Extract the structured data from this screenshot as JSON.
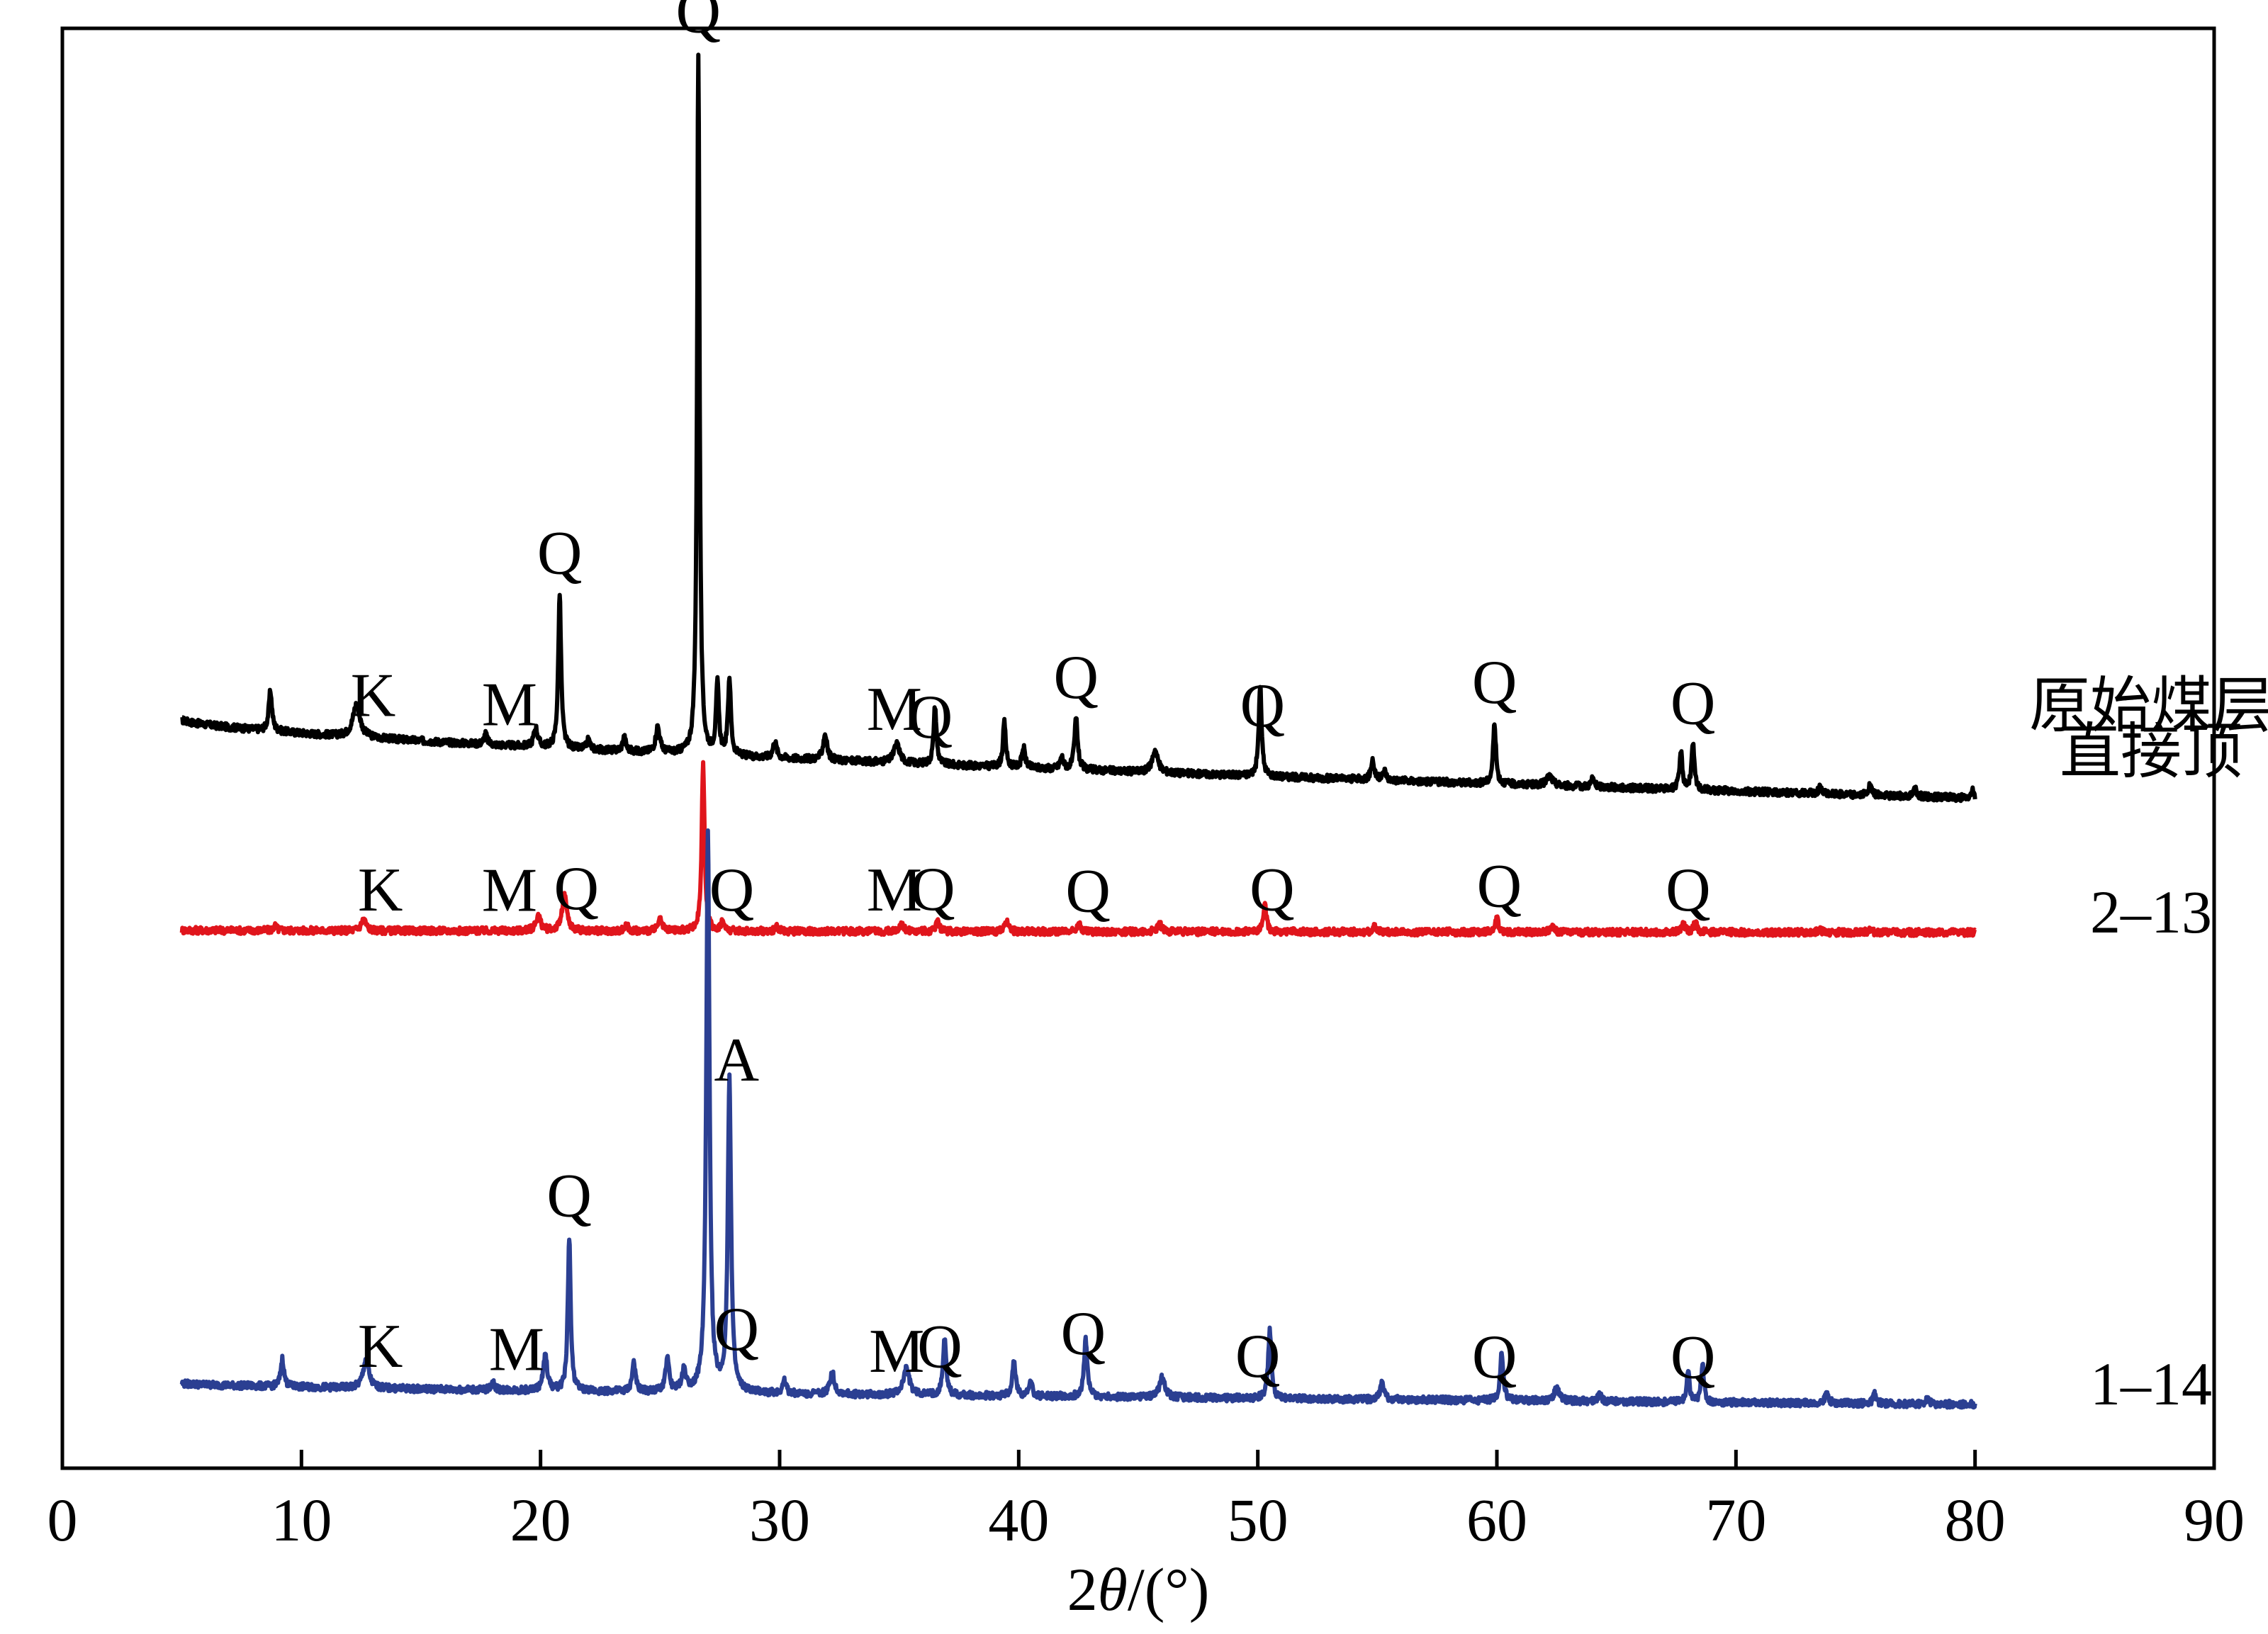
{
  "chart_data": {
    "type": "line",
    "title": "",
    "xlabel": "2θ/(°)",
    "xlabel_parts": {
      "prefix": "2",
      "theta": "θ",
      "suffix": "/(°)"
    },
    "ylabel": "",
    "xlim": [
      0,
      90
    ],
    "x_ticks": [
      0,
      10,
      20,
      30,
      40,
      50,
      60,
      70,
      80,
      90
    ],
    "x_tick_labels": [
      "0",
      "10",
      "20",
      "30",
      "40",
      "50",
      "60",
      "70",
      "80",
      "90"
    ],
    "y_axis_ticks": false,
    "grid": false,
    "legend": "none",
    "series": [
      {
        "name": "原始煤层直接顶",
        "label_lines": [
          "原始煤层",
          "直接顶"
        ],
        "color": "#000000",
        "x_range": [
          5,
          80
        ],
        "baseline": {
          "start": 0.68,
          "end": 0.01
        },
        "peaks": [
          {
            "x": 8.7,
            "h": 0.34,
            "w": 0.08
          },
          {
            "x": 12.3,
            "h": 0.28,
            "w": 0.18
          },
          {
            "x": 17.7,
            "h": 0.09,
            "w": 0.08
          },
          {
            "x": 19.8,
            "h": 0.16,
            "w": 0.1
          },
          {
            "x": 20.8,
            "h": 1.32,
            "w": 0.07
          },
          {
            "x": 22.0,
            "h": 0.08,
            "w": 0.08
          },
          {
            "x": 23.5,
            "h": 0.12,
            "w": 0.08
          },
          {
            "x": 24.9,
            "h": 0.22,
            "w": 0.1
          },
          {
            "x": 26.6,
            "h": 6.0,
            "w": 0.06
          },
          {
            "x": 27.4,
            "h": 0.6,
            "w": 0.07
          },
          {
            "x": 27.9,
            "h": 0.66,
            "w": 0.07
          },
          {
            "x": 29.8,
            "h": 0.14,
            "w": 0.09
          },
          {
            "x": 31.9,
            "h": 0.22,
            "w": 0.1
          },
          {
            "x": 34.9,
            "h": 0.16,
            "w": 0.15
          },
          {
            "x": 36.5,
            "h": 0.5,
            "w": 0.07
          },
          {
            "x": 39.4,
            "h": 0.38,
            "w": 0.07
          },
          {
            "x": 40.2,
            "h": 0.17,
            "w": 0.08
          },
          {
            "x": 41.8,
            "h": 0.1,
            "w": 0.08
          },
          {
            "x": 42.4,
            "h": 0.44,
            "w": 0.08
          },
          {
            "x": 45.7,
            "h": 0.19,
            "w": 0.14
          },
          {
            "x": 50.1,
            "h": 0.78,
            "w": 0.07
          },
          {
            "x": 54.8,
            "h": 0.17,
            "w": 0.08
          },
          {
            "x": 55.3,
            "h": 0.08,
            "w": 0.08
          },
          {
            "x": 59.9,
            "h": 0.52,
            "w": 0.07
          },
          {
            "x": 62.2,
            "h": 0.08,
            "w": 0.15
          },
          {
            "x": 64.0,
            "h": 0.07,
            "w": 0.08
          },
          {
            "x": 67.7,
            "h": 0.32,
            "w": 0.07
          },
          {
            "x": 68.2,
            "h": 0.39,
            "w": 0.07
          },
          {
            "x": 73.5,
            "h": 0.05,
            "w": 0.08
          },
          {
            "x": 75.6,
            "h": 0.08,
            "w": 0.08
          },
          {
            "x": 77.5,
            "h": 0.07,
            "w": 0.08
          },
          {
            "x": 79.9,
            "h": 0.06,
            "w": 0.06
          }
        ]
      },
      {
        "name": "2–13",
        "label_lines": [
          "2–13"
        ],
        "color": "#e0151c",
        "x_range": [
          5,
          80
        ],
        "baseline": {
          "start": 0.02,
          "end": 0.0
        },
        "peaks": [
          {
            "x": 8.9,
            "h": 0.04,
            "w": 0.08
          },
          {
            "x": 12.6,
            "h": 0.1,
            "w": 0.12
          },
          {
            "x": 19.9,
            "h": 0.13,
            "w": 0.12
          },
          {
            "x": 21.0,
            "h": 0.3,
            "w": 0.12
          },
          {
            "x": 23.6,
            "h": 0.05,
            "w": 0.08
          },
          {
            "x": 25.0,
            "h": 0.09,
            "w": 0.1
          },
          {
            "x": 26.8,
            "h": 1.45,
            "w": 0.07
          },
          {
            "x": 27.6,
            "h": 0.08,
            "w": 0.08
          },
          {
            "x": 29.9,
            "h": 0.04,
            "w": 0.08
          },
          {
            "x": 35.1,
            "h": 0.06,
            "w": 0.12
          },
          {
            "x": 36.6,
            "h": 0.1,
            "w": 0.08
          },
          {
            "x": 39.5,
            "h": 0.1,
            "w": 0.08
          },
          {
            "x": 42.5,
            "h": 0.08,
            "w": 0.08
          },
          {
            "x": 45.9,
            "h": 0.06,
            "w": 0.12
          },
          {
            "x": 50.3,
            "h": 0.22,
            "w": 0.08
          },
          {
            "x": 54.9,
            "h": 0.05,
            "w": 0.08
          },
          {
            "x": 60.0,
            "h": 0.12,
            "w": 0.08
          },
          {
            "x": 62.3,
            "h": 0.04,
            "w": 0.1
          },
          {
            "x": 67.8,
            "h": 0.07,
            "w": 0.08
          },
          {
            "x": 68.3,
            "h": 0.09,
            "w": 0.08
          },
          {
            "x": 73.5,
            "h": 0.03,
            "w": 0.08
          },
          {
            "x": 75.6,
            "h": 0.03,
            "w": 0.08
          }
        ]
      },
      {
        "name": "1–14",
        "label_lines": [
          "1–14"
        ],
        "color": "#2b3f92",
        "x_range": [
          5,
          80
        ],
        "baseline": {
          "start": 0.18,
          "end": 0.0
        },
        "peaks": [
          {
            "x": 9.2,
            "h": 0.24,
            "w": 0.08
          },
          {
            "x": 12.7,
            "h": 0.25,
            "w": 0.14
          },
          {
            "x": 18.0,
            "h": 0.07,
            "w": 0.08
          },
          {
            "x": 20.2,
            "h": 0.3,
            "w": 0.1
          },
          {
            "x": 21.2,
            "h": 1.32,
            "w": 0.07
          },
          {
            "x": 23.9,
            "h": 0.25,
            "w": 0.08
          },
          {
            "x": 25.3,
            "h": 0.28,
            "w": 0.09
          },
          {
            "x": 26.0,
            "h": 0.18,
            "w": 0.1
          },
          {
            "x": 27.0,
            "h": 4.8,
            "w": 0.08
          },
          {
            "x": 27.9,
            "h": 2.68,
            "w": 0.08
          },
          {
            "x": 30.2,
            "h": 0.12,
            "w": 0.08
          },
          {
            "x": 32.2,
            "h": 0.2,
            "w": 0.1
          },
          {
            "x": 35.3,
            "h": 0.22,
            "w": 0.15
          },
          {
            "x": 36.9,
            "h": 0.48,
            "w": 0.08
          },
          {
            "x": 39.8,
            "h": 0.3,
            "w": 0.08
          },
          {
            "x": 40.5,
            "h": 0.12,
            "w": 0.08
          },
          {
            "x": 42.8,
            "h": 0.5,
            "w": 0.08
          },
          {
            "x": 46.0,
            "h": 0.17,
            "w": 0.14
          },
          {
            "x": 50.5,
            "h": 0.58,
            "w": 0.08
          },
          {
            "x": 55.2,
            "h": 0.14,
            "w": 0.09
          },
          {
            "x": 60.2,
            "h": 0.4,
            "w": 0.08
          },
          {
            "x": 62.5,
            "h": 0.1,
            "w": 0.15
          },
          {
            "x": 64.3,
            "h": 0.06,
            "w": 0.08
          },
          {
            "x": 68.0,
            "h": 0.26,
            "w": 0.07
          },
          {
            "x": 68.6,
            "h": 0.32,
            "w": 0.07
          },
          {
            "x": 73.8,
            "h": 0.07,
            "w": 0.1
          },
          {
            "x": 75.8,
            "h": 0.08,
            "w": 0.08
          },
          {
            "x": 78.0,
            "h": 0.05,
            "w": 0.08
          }
        ]
      }
    ],
    "annotations": [
      {
        "series": 0,
        "text": "Q",
        "x": 26.6
      },
      {
        "series": 0,
        "text": "Q",
        "x": 20.8
      },
      {
        "series": 0,
        "text": "K",
        "x": 13.0
      },
      {
        "series": 0,
        "text": "M",
        "x": 18.7
      },
      {
        "series": 0,
        "text": "M",
        "x": 34.8
      },
      {
        "series": 0,
        "text": "Q",
        "x": 36.3
      },
      {
        "series": 0,
        "text": "Q",
        "x": 42.4
      },
      {
        "series": 0,
        "text": "Q",
        "x": 50.2
      },
      {
        "series": 0,
        "text": "Q",
        "x": 59.9
      },
      {
        "series": 0,
        "text": "Q",
        "x": 68.2
      },
      {
        "series": 1,
        "text": "Q",
        "x": 28.0
      },
      {
        "series": 1,
        "text": "K",
        "x": 13.3
      },
      {
        "series": 1,
        "text": "M",
        "x": 18.7
      },
      {
        "series": 1,
        "text": "Q",
        "x": 21.5
      },
      {
        "series": 1,
        "text": "M",
        "x": 34.8
      },
      {
        "series": 1,
        "text": "Q",
        "x": 36.4
      },
      {
        "series": 1,
        "text": "Q",
        "x": 42.9
      },
      {
        "series": 1,
        "text": "Q",
        "x": 50.6
      },
      {
        "series": 1,
        "text": "Q",
        "x": 60.1
      },
      {
        "series": 1,
        "text": "Q",
        "x": 68.0
      },
      {
        "series": 2,
        "text": "Q",
        "x": 28.2
      },
      {
        "series": 2,
        "text": "A",
        "x": 28.2
      },
      {
        "series": 2,
        "text": "Q",
        "x": 21.2
      },
      {
        "series": 2,
        "text": "K",
        "x": 13.3
      },
      {
        "series": 2,
        "text": "M",
        "x": 19.0
      },
      {
        "series": 2,
        "text": "M",
        "x": 34.9
      },
      {
        "series": 2,
        "text": "Q",
        "x": 36.7
      },
      {
        "series": 2,
        "text": "Q",
        "x": 42.7
      },
      {
        "series": 2,
        "text": "Q",
        "x": 50.0
      },
      {
        "series": 2,
        "text": "Q",
        "x": 59.9
      },
      {
        "series": 2,
        "text": "Q",
        "x": 68.2
      }
    ]
  }
}
